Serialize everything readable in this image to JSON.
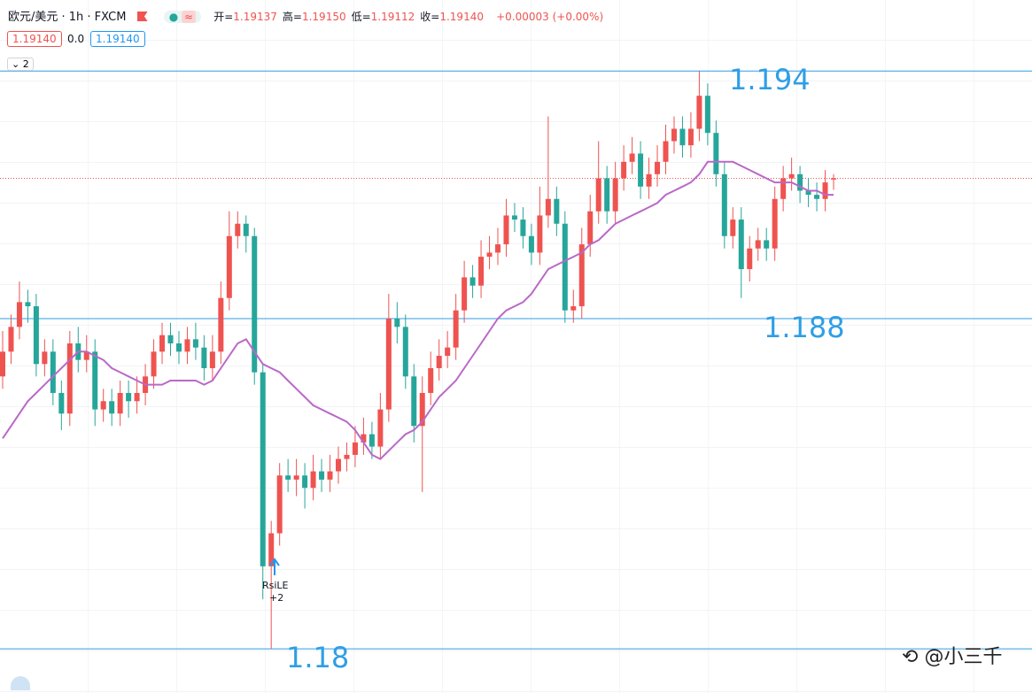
{
  "header": {
    "symbol": "欧元/美元 · 1h · FXCM",
    "ohlc_legend": [
      {
        "label": "开=",
        "value": "1.19137"
      },
      {
        "label": "高=",
        "value": "1.19150"
      },
      {
        "label": "低=",
        "value": "1.19112"
      },
      {
        "label": "收=",
        "value": "1.19140"
      }
    ],
    "change": "+0.00003 (+0.00%)",
    "bid": "1.19140",
    "spread": "0.0",
    "ask": "1.19140",
    "collapsed_count": "2"
  },
  "signal": {
    "name": "RsiLE",
    "size": "+2"
  },
  "watermark": "@小三千",
  "chart_data": {
    "type": "candlestick",
    "ylim": [
      1.17893,
      1.19572
    ],
    "up_color": "#ef5350",
    "down_color": "#26a69a",
    "price_line": {
      "value": 1.1914,
      "color": "#ef5350"
    },
    "levels": [
      1.194,
      1.188,
      1.18
    ],
    "level_color": "#2f9ee6",
    "ohlc": [
      [
        1.1866,
        1.1877,
        1.1863,
        1.1872
      ],
      [
        1.1872,
        1.1881,
        1.1869,
        1.1878
      ],
      [
        1.1878,
        1.1889,
        1.1875,
        1.1884
      ],
      [
        1.1884,
        1.1887,
        1.1879,
        1.1883
      ],
      [
        1.1883,
        1.1886,
        1.1866,
        1.1869
      ],
      [
        1.1869,
        1.1875,
        1.1866,
        1.1872
      ],
      [
        1.1872,
        1.1875,
        1.1859,
        1.1862
      ],
      [
        1.1862,
        1.1865,
        1.1853,
        1.1857
      ],
      [
        1.1857,
        1.1877,
        1.1854,
        1.1874
      ],
      [
        1.1874,
        1.1878,
        1.1867,
        1.187
      ],
      [
        1.187,
        1.1876,
        1.1867,
        1.1872
      ],
      [
        1.1872,
        1.1875,
        1.1854,
        1.1858
      ],
      [
        1.1858,
        1.1863,
        1.1855,
        1.186
      ],
      [
        1.186,
        1.1863,
        1.1854,
        1.1857
      ],
      [
        1.1857,
        1.1865,
        1.1854,
        1.1862
      ],
      [
        1.1862,
        1.1865,
        1.1856,
        1.186
      ],
      [
        1.186,
        1.1866,
        1.1857,
        1.1862
      ],
      [
        1.1862,
        1.1869,
        1.1859,
        1.1866
      ],
      [
        1.1866,
        1.1875,
        1.1863,
        1.1872
      ],
      [
        1.1872,
        1.1879,
        1.1869,
        1.1876
      ],
      [
        1.1876,
        1.1879,
        1.1871,
        1.1874
      ],
      [
        1.1874,
        1.1877,
        1.1869,
        1.1872
      ],
      [
        1.1872,
        1.1878,
        1.1869,
        1.1875
      ],
      [
        1.1875,
        1.1879,
        1.187,
        1.1873
      ],
      [
        1.1873,
        1.1876,
        1.1865,
        1.1868
      ],
      [
        1.1868,
        1.1876,
        1.1865,
        1.1872
      ],
      [
        1.1872,
        1.1889,
        1.1869,
        1.1885
      ],
      [
        1.1885,
        1.1906,
        1.1882,
        1.19
      ],
      [
        1.19,
        1.1906,
        1.1897,
        1.1903
      ],
      [
        1.1903,
        1.1905,
        1.1896,
        1.19
      ],
      [
        1.19,
        1.1902,
        1.1864,
        1.1867
      ],
      [
        1.1867,
        1.1869,
        1.1812,
        1.182
      ],
      [
        1.182,
        1.1831,
        1.18,
        1.1828
      ],
      [
        1.1828,
        1.1845,
        1.1825,
        1.1842
      ],
      [
        1.1842,
        1.1846,
        1.1838,
        1.1841
      ],
      [
        1.1841,
        1.1846,
        1.1837,
        1.1842
      ],
      [
        1.1842,
        1.1845,
        1.1834,
        1.1839
      ],
      [
        1.1839,
        1.1847,
        1.1836,
        1.1843
      ],
      [
        1.1843,
        1.1846,
        1.1838,
        1.1841
      ],
      [
        1.1841,
        1.1847,
        1.1838,
        1.1843
      ],
      [
        1.1843,
        1.1849,
        1.184,
        1.1846
      ],
      [
        1.1846,
        1.185,
        1.1843,
        1.1847
      ],
      [
        1.1847,
        1.1854,
        1.1844,
        1.185
      ],
      [
        1.185,
        1.1856,
        1.1847,
        1.1852
      ],
      [
        1.1852,
        1.1855,
        1.1846,
        1.1849
      ],
      [
        1.1849,
        1.1862,
        1.1846,
        1.1858
      ],
      [
        1.1858,
        1.1886,
        1.1855,
        1.188
      ],
      [
        1.188,
        1.1884,
        1.1874,
        1.1878
      ],
      [
        1.1878,
        1.1881,
        1.1863,
        1.1866
      ],
      [
        1.1866,
        1.1869,
        1.185,
        1.1854
      ],
      [
        1.1854,
        1.1866,
        1.1838,
        1.1862
      ],
      [
        1.1862,
        1.1872,
        1.1859,
        1.1868
      ],
      [
        1.1868,
        1.1875,
        1.1865,
        1.1871
      ],
      [
        1.1871,
        1.1877,
        1.1868,
        1.1873
      ],
      [
        1.1873,
        1.1886,
        1.187,
        1.1882
      ],
      [
        1.1882,
        1.1894,
        1.1879,
        1.189
      ],
      [
        1.189,
        1.1893,
        1.1885,
        1.1888
      ],
      [
        1.1888,
        1.1899,
        1.1885,
        1.1895
      ],
      [
        1.1895,
        1.19,
        1.1892,
        1.1896
      ],
      [
        1.1896,
        1.1902,
        1.1893,
        1.1898
      ],
      [
        1.1898,
        1.1909,
        1.1895,
        1.1905
      ],
      [
        1.1905,
        1.1908,
        1.1901,
        1.1904
      ],
      [
        1.1904,
        1.1907,
        1.1897,
        1.19
      ],
      [
        1.19,
        1.1903,
        1.1893,
        1.1896
      ],
      [
        1.1896,
        1.1912,
        1.1893,
        1.1905
      ],
      [
        1.1905,
        1.1929,
        1.1902,
        1.1909
      ],
      [
        1.1909,
        1.1912,
        1.19,
        1.1903
      ],
      [
        1.1903,
        1.1906,
        1.1879,
        1.1882
      ],
      [
        1.1882,
        1.1887,
        1.1879,
        1.1883
      ],
      [
        1.1883,
        1.1902,
        1.188,
        1.1898
      ],
      [
        1.1898,
        1.191,
        1.1895,
        1.1906
      ],
      [
        1.1906,
        1.1923,
        1.1903,
        1.1914
      ],
      [
        1.1914,
        1.1917,
        1.1903,
        1.1906
      ],
      [
        1.1906,
        1.1918,
        1.1903,
        1.1914
      ],
      [
        1.1914,
        1.1922,
        1.1911,
        1.1918
      ],
      [
        1.1918,
        1.1924,
        1.1915,
        1.192
      ],
      [
        1.192,
        1.1923,
        1.1909,
        1.1912
      ],
      [
        1.1912,
        1.1919,
        1.1909,
        1.1915
      ],
      [
        1.1915,
        1.1922,
        1.1912,
        1.1918
      ],
      [
        1.1918,
        1.1927,
        1.1915,
        1.1923
      ],
      [
        1.1923,
        1.1929,
        1.192,
        1.1926
      ],
      [
        1.1926,
        1.1929,
        1.1919,
        1.1922
      ],
      [
        1.1922,
        1.193,
        1.1919,
        1.1926
      ],
      [
        1.1926,
        1.194,
        1.1923,
        1.1934
      ],
      [
        1.1934,
        1.1937,
        1.1922,
        1.1925
      ],
      [
        1.1925,
        1.1928,
        1.1912,
        1.1915
      ],
      [
        1.1915,
        1.1918,
        1.1897,
        1.19
      ],
      [
        1.19,
        1.1907,
        1.1897,
        1.1904
      ],
      [
        1.1904,
        1.1907,
        1.1885,
        1.1892
      ],
      [
        1.1892,
        1.19,
        1.1889,
        1.1897
      ],
      [
        1.1897,
        1.1902,
        1.1894,
        1.1899
      ],
      [
        1.1899,
        1.1902,
        1.1894,
        1.1897
      ],
      [
        1.1897,
        1.1912,
        1.1894,
        1.1909
      ],
      [
        1.1909,
        1.1917,
        1.1906,
        1.1914
      ],
      [
        1.1914,
        1.1919,
        1.1911,
        1.1915
      ],
      [
        1.1915,
        1.1917,
        1.1908,
        1.1911
      ],
      [
        1.1911,
        1.1914,
        1.1907,
        1.191
      ],
      [
        1.191,
        1.1913,
        1.1906,
        1.1909
      ],
      [
        1.1909,
        1.1916,
        1.1906,
        1.1913
      ],
      [
        1.19137,
        1.1915,
        1.19112,
        1.1914
      ]
    ],
    "ma": {
      "color": "#ba68c8",
      "values": [
        1.1851,
        1.1854,
        1.1857,
        1.186,
        1.1862,
        1.1864,
        1.1866,
        1.1868,
        1.187,
        1.1872,
        1.1872,
        1.1871,
        1.187,
        1.1868,
        1.1867,
        1.1866,
        1.1865,
        1.1864,
        1.1864,
        1.1864,
        1.1865,
        1.1865,
        1.1865,
        1.1865,
        1.1864,
        1.1865,
        1.1868,
        1.1871,
        1.1874,
        1.1875,
        1.1872,
        1.1869,
        1.1868,
        1.1867,
        1.1865,
        1.1863,
        1.1861,
        1.1859,
        1.1858,
        1.1857,
        1.1856,
        1.1855,
        1.1853,
        1.185,
        1.1847,
        1.1846,
        1.1848,
        1.185,
        1.1852,
        1.1853,
        1.1855,
        1.1858,
        1.1861,
        1.1863,
        1.1865,
        1.1868,
        1.1871,
        1.1874,
        1.1877,
        1.188,
        1.1882,
        1.1883,
        1.1884,
        1.1886,
        1.1889,
        1.1892,
        1.1893,
        1.1894,
        1.1895,
        1.1896,
        1.1898,
        1.1899,
        1.1901,
        1.1903,
        1.1904,
        1.1905,
        1.1906,
        1.1907,
        1.1908,
        1.191,
        1.1911,
        1.1912,
        1.1913,
        1.1915,
        1.1918,
        1.1918,
        1.1918,
        1.1918,
        1.1917,
        1.1916,
        1.1915,
        1.1914,
        1.1913,
        1.1913,
        1.1913,
        1.1912,
        1.1911,
        1.1911,
        1.191,
        1.191
      ]
    }
  }
}
